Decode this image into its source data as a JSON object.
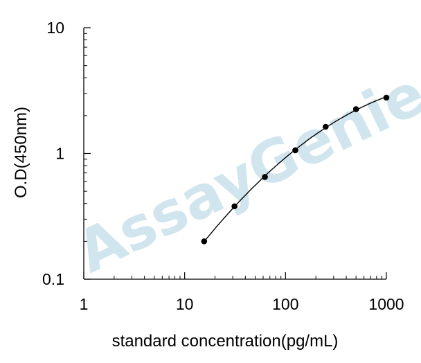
{
  "chart_data": {
    "type": "scatter",
    "xlabel": "standard concentration(pg/mL)",
    "ylabel": "O.D(450nm)",
    "xscale": "log",
    "yscale": "log",
    "xlim": [
      1,
      1000
    ],
    "ylim": [
      0.1,
      10
    ],
    "x_ticks": [
      "1",
      "10",
      "100",
      "1000"
    ],
    "y_ticks": [
      "0.1",
      "1",
      "10"
    ],
    "grid": false,
    "series": [
      {
        "points": [
          {
            "x": 15.6,
            "y": 0.2
          },
          {
            "x": 31.2,
            "y": 0.38
          },
          {
            "x": 62.5,
            "y": 0.65
          },
          {
            "x": 125,
            "y": 1.06
          },
          {
            "x": 250,
            "y": 1.63
          },
          {
            "x": 500,
            "y": 2.25
          },
          {
            "x": 1000,
            "y": 2.78
          }
        ],
        "fit": "smooth-curve"
      }
    ],
    "watermark": "AssayGenie",
    "colors": {
      "points": "#000000",
      "curve": "#000000",
      "watermark": "#a9cfe0"
    }
  }
}
